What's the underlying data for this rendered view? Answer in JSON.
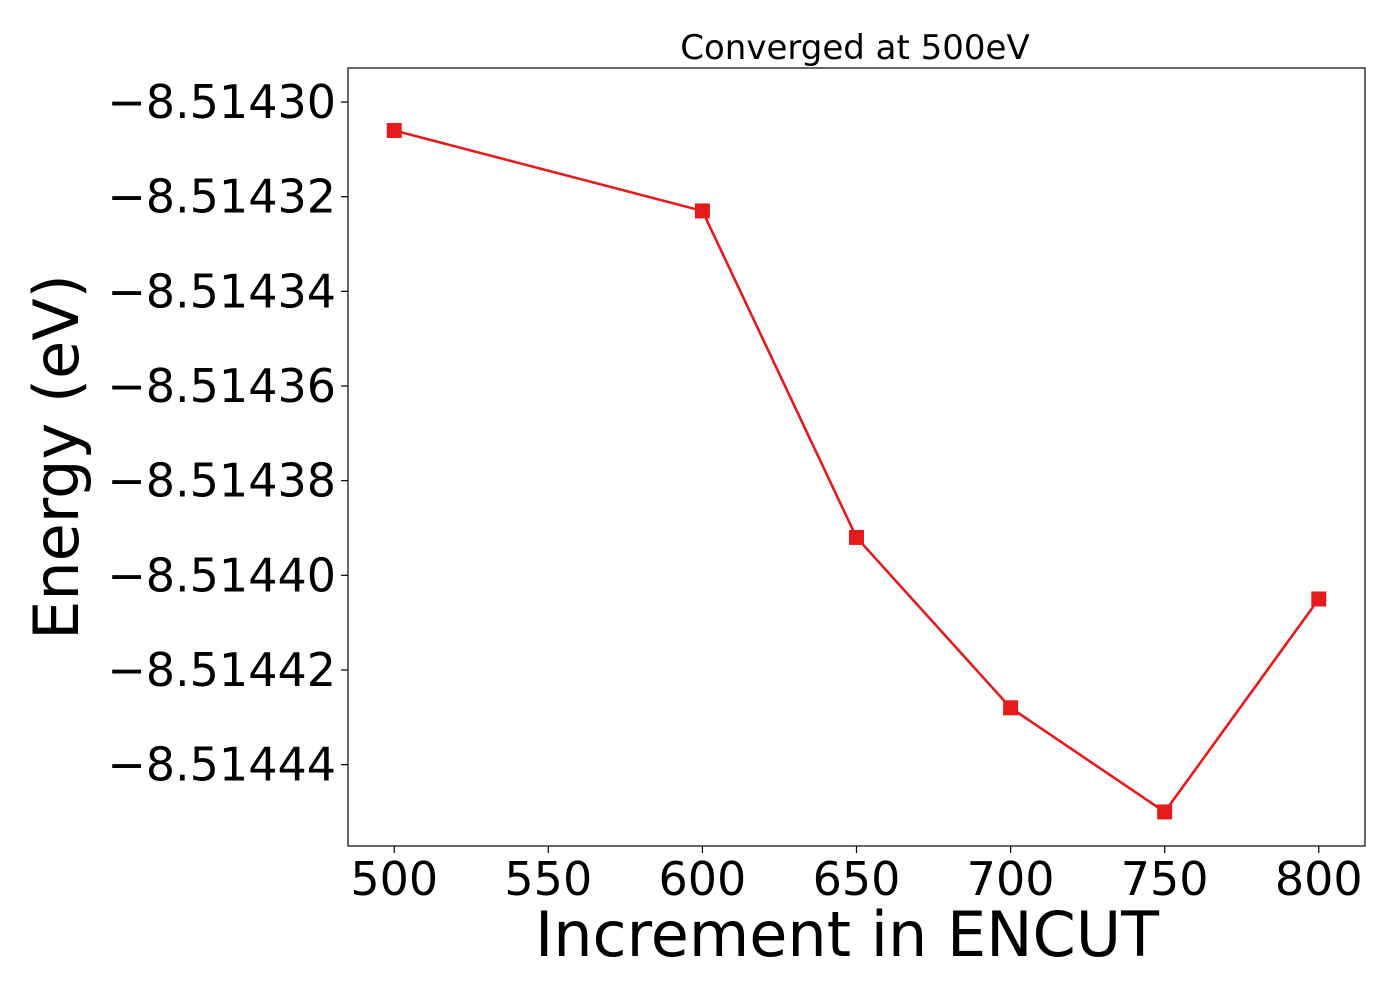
{
  "chart_data": {
    "type": "line",
    "title": "Converged at 500eV",
    "xlabel": "Increment in ENCUT",
    "ylabel": "Energy (eV)",
    "x": [
      500,
      600,
      650,
      700,
      750,
      800
    ],
    "series": [
      {
        "values": [
          -8.514306,
          -8.514323,
          -8.514392,
          -8.514428,
          -8.51445,
          -8.514405
        ],
        "color": "#e41a1c",
        "marker": "square"
      }
    ],
    "xlim": [
      485,
      815
    ],
    "ylim": [
      -8.5144572,
      -8.5142928
    ],
    "xticks": [
      500,
      550,
      600,
      650,
      700,
      750,
      800
    ],
    "xtick_labels": [
      "500",
      "550",
      "600",
      "650",
      "700",
      "750",
      "800"
    ],
    "yticks": [
      -8.5143,
      -8.51432,
      -8.51434,
      -8.51436,
      -8.51438,
      -8.5144,
      -8.51442,
      -8.51444
    ],
    "ytick_labels": [
      "−8.51430",
      "−8.51432",
      "−8.51434",
      "−8.51436",
      "−8.51438",
      "−8.51440",
      "−8.51442",
      "−8.51444"
    ],
    "grid": false,
    "legend": false
  }
}
